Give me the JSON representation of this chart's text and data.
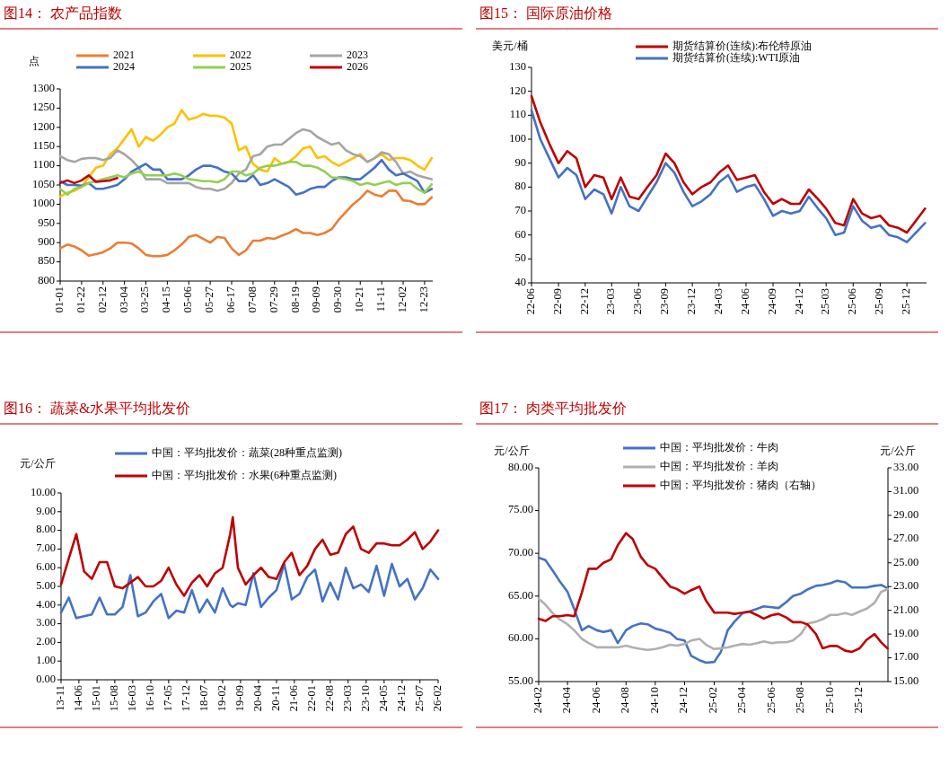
{
  "chart_data": [
    {
      "type": "line",
      "title": "图14：  农产品指数",
      "ylabel": "点",
      "legend": "top",
      "x": [
        "--01-01",
        "--01-08",
        "--01-15",
        "--01-22",
        "--01-29",
        "--02-05",
        "--02-12",
        "--02-19",
        "--02-26",
        "--03-04",
        "--03-11",
        "--03-18",
        "--03-25",
        "--04-01",
        "--04-08",
        "--04-15",
        "--04-22",
        "--04-29",
        "--05-06",
        "--05-13",
        "--05-20",
        "--05-27",
        "--06-03",
        "--06-10",
        "--06-17",
        "--06-24",
        "--07-01",
        "--07-08",
        "--07-15",
        "--07-22",
        "--07-29",
        "--08-05",
        "--08-12",
        "--08-19",
        "--08-26",
        "--09-02",
        "--09-09",
        "--09-16",
        "--09-23",
        "--09-30",
        "--10-07",
        "--10-14",
        "--10-21",
        "--10-28",
        "--11-04",
        "--11-11",
        "--11-18",
        "--11-25",
        "--12-02",
        "--12-09",
        "--12-16",
        "--12-23",
        "--12-30"
      ],
      "xlim": [
        "--01-01",
        "--12-31"
      ],
      "ylim": [
        800,
        1300
      ],
      "yticks": [
        800,
        850,
        900,
        950,
        1000,
        1050,
        1100,
        1150,
        1200,
        1250,
        1300
      ],
      "xticks": [
        {
          "value": "--01-01",
          "label": "01-01"
        },
        {
          "value": "--01-22",
          "label": "01-22"
        },
        {
          "value": "--02-12",
          "label": "02-12"
        },
        {
          "value": "--03-04",
          "label": "03-04"
        },
        {
          "value": "--03-25",
          "label": "03-25"
        },
        {
          "value": "--04-15",
          "label": "04-15"
        },
        {
          "value": "--05-06",
          "label": "05-06"
        },
        {
          "value": "--05-27",
          "label": "05-27"
        },
        {
          "value": "--06-17",
          "label": "06-17"
        },
        {
          "value": "--07-08",
          "label": "07-08"
        },
        {
          "value": "--07-29",
          "label": "07-29"
        },
        {
          "value": "--08-19",
          "label": "08-19"
        },
        {
          "value": "--09-09",
          "label": "09-09"
        },
        {
          "value": "--09-30",
          "label": "09-30"
        },
        {
          "value": "--10-21",
          "label": "10-21"
        },
        {
          "value": "--11-11",
          "label": "11-11"
        },
        {
          "value": "--12-02",
          "label": "12-02"
        },
        {
          "value": "--12-23",
          "label": "12-23"
        }
      ],
      "series": [
        {
          "name": "2021",
          "color": "#ed7d31",
          "values": [
            885,
            895,
            890,
            880,
            866,
            870,
            875,
            885,
            900,
            900,
            898,
            885,
            868,
            865,
            865,
            868,
            880,
            895,
            915,
            920,
            910,
            900,
            915,
            912,
            885,
            868,
            880,
            905,
            905,
            912,
            910,
            918,
            925,
            935,
            925,
            925,
            920,
            925,
            935,
            960,
            980,
            1000,
            1015,
            1035,
            1025,
            1020,
            1035,
            1035,
            1010,
            1008,
            1000,
            1000,
            1018
          ]
        },
        {
          "name": "2022",
          "color": "#ffc000",
          "values": [
            1020,
            1030,
            1035,
            1045,
            1070,
            1095,
            1100,
            1130,
            1145,
            1170,
            1195,
            1150,
            1175,
            1165,
            1180,
            1200,
            1210,
            1245,
            1220,
            1225,
            1235,
            1230,
            1230,
            1225,
            1210,
            1140,
            1150,
            1105,
            1090,
            1085,
            1120,
            1105,
            1110,
            1125,
            1145,
            1150,
            1120,
            1125,
            1110,
            1100,
            1110,
            1120,
            1130,
            1110,
            1120,
            1130,
            1115,
            1120,
            1120,
            1115,
            1100,
            1090,
            1120
          ]
        },
        {
          "name": "2023",
          "color": "#a5a5a5",
          "values": [
            1125,
            1115,
            1110,
            1118,
            1120,
            1120,
            1115,
            1120,
            1140,
            1130,
            1115,
            1095,
            1065,
            1065,
            1065,
            1055,
            1055,
            1055,
            1055,
            1045,
            1040,
            1040,
            1035,
            1040,
            1055,
            1080,
            1090,
            1125,
            1130,
            1150,
            1155,
            1155,
            1170,
            1185,
            1195,
            1190,
            1175,
            1165,
            1155,
            1160,
            1140,
            1130,
            1125,
            1110,
            1120,
            1135,
            1130,
            1110,
            1080,
            1085,
            1075,
            1070,
            1065
          ]
        },
        {
          "name": "2024",
          "color": "#4472c4",
          "values": [
            1060,
            1050,
            1050,
            1048,
            1055,
            1040,
            1040,
            1045,
            1050,
            1065,
            1085,
            1095,
            1105,
            1090,
            1090,
            1065,
            1065,
            1065,
            1075,
            1090,
            1100,
            1100,
            1095,
            1085,
            1080,
            1060,
            1060,
            1075,
            1050,
            1055,
            1065,
            1055,
            1045,
            1025,
            1030,
            1040,
            1045,
            1045,
            1060,
            1070,
            1070,
            1065,
            1065,
            1080,
            1095,
            1115,
            1090,
            1075,
            1080,
            1070,
            1060,
            1030,
            1040
          ]
        },
        {
          "name": "2025",
          "color": "#92d050",
          "values": [
            1040,
            1025,
            1040,
            1045,
            1055,
            1060,
            1065,
            1070,
            1075,
            1070,
            1080,
            1085,
            1075,
            1075,
            1075,
            1075,
            1080,
            1075,
            1065,
            1063,
            1060,
            1060,
            1057,
            1065,
            1085,
            1085,
            1075,
            1080,
            1095,
            1100,
            1100,
            1105,
            1110,
            1110,
            1100,
            1100,
            1095,
            1085,
            1070,
            1068,
            1065,
            1060,
            1050,
            1055,
            1050,
            1055,
            1060,
            1050,
            1055,
            1055,
            1040,
            1030,
            1052
          ]
        },
        {
          "name": "2026",
          "color": "#c00000",
          "x": [
            "--01-01",
            "--01-08",
            "--01-15",
            "--01-22",
            "--01-29",
            "--02-05",
            "--02-12",
            "--02-19",
            "--02-26"
          ],
          "values": [
            1055,
            1062,
            1055,
            1062,
            1075,
            1058,
            1060,
            1062,
            1068
          ]
        }
      ]
    },
    {
      "type": "line",
      "title": "图15：  国际原油价格",
      "ylabel": "美元/桶",
      "legend": "top",
      "x": [
        "2022-06",
        "2022-07",
        "2022-08",
        "2022-09",
        "2022-10",
        "2022-11",
        "2022-12",
        "2023-01",
        "2023-02",
        "2023-03",
        "2023-04",
        "2023-05",
        "2023-06",
        "2023-07",
        "2023-08",
        "2023-09",
        "2023-10",
        "2023-11",
        "2023-12",
        "2024-01",
        "2024-02",
        "2024-03",
        "2024-04",
        "2024-05",
        "2024-06",
        "2024-07",
        "2024-08",
        "2024-09",
        "2024-10",
        "2024-11",
        "2024-12",
        "2025-01",
        "2025-02",
        "2025-03",
        "2025-04",
        "2025-05",
        "2025-06",
        "2025-07",
        "2025-08",
        "2025-09",
        "2025-10",
        "2025-11",
        "2025-12",
        "2026-01",
        "2026-02"
      ],
      "xlim": [
        "2022-06",
        "2026-02-06"
      ],
      "ylim": [
        40,
        130
      ],
      "yticks": [
        40,
        50,
        60,
        70,
        80,
        90,
        100,
        110,
        120,
        130
      ],
      "xticks": [
        {
          "value": "2022-06",
          "label": "22-06"
        },
        {
          "value": "2022-09",
          "label": "22-09"
        },
        {
          "value": "2022-12",
          "label": "22-12"
        },
        {
          "value": "2023-03",
          "label": "23-03"
        },
        {
          "value": "2023-06",
          "label": "23-06"
        },
        {
          "value": "2023-09",
          "label": "23-09"
        },
        {
          "value": "2023-12",
          "label": "23-12"
        },
        {
          "value": "2024-03",
          "label": "24-03"
        },
        {
          "value": "2024-06",
          "label": "24-06"
        },
        {
          "value": "2024-09",
          "label": "24-09"
        },
        {
          "value": "2024-12",
          "label": "24-12"
        },
        {
          "value": "2025-03",
          "label": "25-03"
        },
        {
          "value": "2025-06",
          "label": "25-06"
        },
        {
          "value": "2025-09",
          "label": "25-09"
        },
        {
          "value": "2025-12",
          "label": "25-12"
        }
      ],
      "series": [
        {
          "name": "期货结算价(连续):布伦特原油",
          "color": "#c00000",
          "values": [
            118,
            107,
            98,
            90,
            95,
            92,
            80,
            85,
            84,
            75,
            84,
            76,
            75,
            80,
            85,
            94,
            90,
            82,
            77,
            80,
            82,
            86,
            89,
            83,
            84,
            85,
            78,
            73,
            75,
            73,
            73,
            79,
            75,
            71,
            65,
            64,
            75,
            69,
            67,
            68,
            64,
            63,
            61,
            66,
            71
          ]
        },
        {
          "name": "期货结算价(连续):WTI原油",
          "color": "#4472c4",
          "values": [
            112,
            100,
            92,
            84,
            88,
            85,
            75,
            79,
            77,
            69,
            80,
            72,
            70,
            76,
            82,
            90,
            86,
            78,
            72,
            74,
            77,
            82,
            85,
            78,
            80,
            81,
            75,
            68,
            70,
            69,
            70,
            76,
            71,
            67,
            60,
            61,
            72,
            66,
            63,
            64,
            60,
            59,
            57,
            61,
            65
          ]
        }
      ]
    },
    {
      "type": "line",
      "title": "图16：  蔬菜&水果平均批发价",
      "ylabel": "元/公斤",
      "legend": "top",
      "x": [
        "2013-11",
        "2014-02",
        "2014-05",
        "2014-08",
        "2014-11",
        "2015-02",
        "2015-05",
        "2015-08",
        "2015-11",
        "2016-02",
        "2016-05",
        "2016-08",
        "2016-11",
        "2017-02",
        "2017-05",
        "2017-08",
        "2017-11",
        "2018-02",
        "2018-05",
        "2018-08",
        "2018-11",
        "2019-02",
        "2019-05",
        "2019-06",
        "2019-08",
        "2019-11",
        "2020-02",
        "2020-05",
        "2020-08",
        "2020-11",
        "2021-02",
        "2021-05",
        "2021-08",
        "2021-11",
        "2022-02",
        "2022-05",
        "2022-08",
        "2022-11",
        "2023-02",
        "2023-05",
        "2023-08",
        "2023-11",
        "2024-02",
        "2024-05",
        "2024-08",
        "2024-11",
        "2025-02",
        "2025-05",
        "2025-08",
        "2025-11",
        "2026-02"
      ],
      "xlim": [
        "2013-11",
        "2026-02"
      ],
      "ylim": [
        0,
        10
      ],
      "yticks": [
        {
          "value": 0,
          "label": "0.00"
        },
        {
          "value": 1,
          "label": "1.00"
        },
        {
          "value": 2,
          "label": "2.00"
        },
        {
          "value": 3,
          "label": "3.00"
        },
        {
          "value": 4,
          "label": "4.00"
        },
        {
          "value": 5,
          "label": "5.00"
        },
        {
          "value": 6,
          "label": "6.00"
        },
        {
          "value": 7,
          "label": "7.00"
        },
        {
          "value": 8,
          "label": "8.00"
        },
        {
          "value": 9,
          "label": "9.00"
        },
        {
          "value": 10,
          "label": "10.00"
        }
      ],
      "xticks": [
        {
          "value": "2013-11",
          "label": "13-11"
        },
        {
          "value": "2014-06",
          "label": "14-06"
        },
        {
          "value": "2015-01",
          "label": "15-01"
        },
        {
          "value": "2015-08",
          "label": "15-08"
        },
        {
          "value": "2016-03",
          "label": "16-03"
        },
        {
          "value": "2016-10",
          "label": "16-10"
        },
        {
          "value": "2017-05",
          "label": "17-05"
        },
        {
          "value": "2017-12",
          "label": "17-12"
        },
        {
          "value": "2018-07",
          "label": "18-07"
        },
        {
          "value": "2019-02",
          "label": "19-02"
        },
        {
          "value": "2019-09",
          "label": "19-09"
        },
        {
          "value": "2020-04",
          "label": "20-04"
        },
        {
          "value": "2020-11",
          "label": "20-11"
        },
        {
          "value": "2021-06",
          "label": "21-06"
        },
        {
          "value": "2022-01",
          "label": "22-01"
        },
        {
          "value": "2022-08",
          "label": "22-08"
        },
        {
          "value": "2023-03",
          "label": "23-03"
        },
        {
          "value": "2023-10",
          "label": "23-10"
        },
        {
          "value": "2024-05",
          "label": "24-05"
        },
        {
          "value": "2024-12",
          "label": "24-12"
        },
        {
          "value": "2025-07",
          "label": "25-07"
        },
        {
          "value": "2026-02",
          "label": "26-02"
        }
      ],
      "series": [
        {
          "name": "中国：平均批发价：蔬菜(28种重点监测)",
          "color": "#4472c4",
          "values": [
            3.6,
            4.4,
            3.3,
            3.4,
            3.5,
            4.4,
            3.5,
            3.5,
            3.9,
            5.6,
            3.4,
            3.6,
            4.2,
            4.6,
            3.3,
            3.7,
            3.6,
            4.8,
            3.6,
            4.3,
            3.6,
            4.9,
            4.0,
            3.9,
            4.1,
            4.0,
            5.7,
            3.9,
            4.4,
            4.8,
            6.2,
            4.3,
            4.6,
            5.5,
            5.9,
            4.2,
            5.2,
            4.3,
            6.0,
            4.9,
            5.1,
            4.7,
            6.1,
            4.5,
            6.2,
            5.0,
            5.4,
            4.3,
            4.9,
            5.9,
            5.4
          ]
        },
        {
          "name": "中国：平均批发价：水果(6种重点监测)",
          "color": "#c00000",
          "values": [
            5.1,
            6.5,
            7.8,
            5.8,
            5.4,
            6.3,
            6.3,
            5.0,
            4.9,
            5.2,
            5.5,
            5.0,
            5.0,
            5.3,
            6.0,
            5.1,
            4.5,
            5.2,
            5.6,
            5.0,
            5.7,
            6.0,
            7.8,
            8.7,
            6.0,
            5.1,
            5.6,
            6.0,
            5.5,
            5.4,
            6.3,
            6.8,
            5.6,
            6.1,
            7.0,
            7.5,
            6.7,
            6.8,
            7.8,
            8.2,
            7.0,
            6.8,
            7.3,
            7.3,
            7.2,
            7.2,
            7.5,
            7.9,
            7.0,
            7.4,
            8.0
          ]
        }
      ]
    },
    {
      "type": "line",
      "title": "图17：  肉类平均批发价",
      "ylabel": "元/公斤",
      "y2label": "元/公斤",
      "legend": "top",
      "x": [
        "2024-02-01",
        "2024-02-15",
        "2024-03-01",
        "2024-03-15",
        "2024-04-01",
        "2024-04-15",
        "2024-05-01",
        "2024-05-15",
        "2024-06-01",
        "2024-06-15",
        "2024-07-01",
        "2024-07-15",
        "2024-08-01",
        "2024-08-15",
        "2024-09-01",
        "2024-09-15",
        "2024-10-01",
        "2024-10-15",
        "2024-11-01",
        "2024-11-15",
        "2024-12-01",
        "2024-12-15",
        "2025-01-01",
        "2025-01-15",
        "2025-02-01",
        "2025-02-15",
        "2025-03-01",
        "2025-03-15",
        "2025-04-01",
        "2025-04-15",
        "2025-05-01",
        "2025-05-15",
        "2025-06-01",
        "2025-06-15",
        "2025-07-01",
        "2025-07-15",
        "2025-08-01",
        "2025-08-15",
        "2025-09-01",
        "2025-09-15",
        "2025-10-01",
        "2025-10-15",
        "2025-11-01",
        "2025-11-15",
        "2025-12-01",
        "2025-12-15",
        "2026-01-01",
        "2026-01-15",
        "2026-01-28"
      ],
      "xlim": [
        "2024-02-01",
        "2026-01-29"
      ],
      "ylim": [
        55,
        80
      ],
      "y2lim": [
        15,
        33
      ],
      "yticks": [
        {
          "value": 55,
          "label": "55.00"
        },
        {
          "value": 60,
          "label": "60.00"
        },
        {
          "value": 65,
          "label": "65.00"
        },
        {
          "value": 70,
          "label": "70.00"
        },
        {
          "value": 75,
          "label": "75.00"
        },
        {
          "value": 80,
          "label": "80.00"
        }
      ],
      "y2ticks": [
        {
          "value": 15,
          "label": "15.00"
        },
        {
          "value": 17,
          "label": "17.00"
        },
        {
          "value": 19,
          "label": "19.00"
        },
        {
          "value": 21,
          "label": "21.00"
        },
        {
          "value": 23,
          "label": "23.00"
        },
        {
          "value": 25,
          "label": "25.00"
        },
        {
          "value": 27,
          "label": "27.00"
        },
        {
          "value": 29,
          "label": "29.00"
        },
        {
          "value": 31,
          "label": "31.00"
        },
        {
          "value": 33,
          "label": "33.00"
        }
      ],
      "xticks": [
        {
          "value": "2024-02",
          "label": "24-02"
        },
        {
          "value": "2024-04",
          "label": "24-04"
        },
        {
          "value": "2024-06",
          "label": "24-06"
        },
        {
          "value": "2024-08",
          "label": "24-08"
        },
        {
          "value": "2024-10",
          "label": "24-10"
        },
        {
          "value": "2024-12",
          "label": "24-12"
        },
        {
          "value": "2025-02",
          "label": "25-02"
        },
        {
          "value": "2025-04",
          "label": "25-04"
        },
        {
          "value": "2025-06",
          "label": "25-06"
        },
        {
          "value": "2025-08",
          "label": "25-08"
        },
        {
          "value": "2025-10",
          "label": "25-10"
        },
        {
          "value": "2025-12",
          "label": "25-12"
        }
      ],
      "series": [
        {
          "name": "中国：平均批发价：牛肉",
          "color": "#4472c4",
          "values": [
            69.5,
            69.2,
            68.0,
            66.8,
            65.5,
            63.5,
            61.0,
            61.5,
            61.0,
            60.8,
            61.0,
            59.5,
            61.0,
            61.5,
            61.8,
            61.7,
            61.2,
            61.0,
            60.7,
            60.0,
            59.8,
            58.0,
            57.5,
            57.2,
            57.3,
            58.5,
            61.0,
            62.0,
            63.0,
            63.2,
            63.5,
            63.8,
            63.7,
            63.6,
            64.3,
            65.0,
            65.3,
            65.8,
            66.2,
            66.3,
            66.5,
            66.8,
            66.6,
            66.0,
            66.0,
            66.0,
            66.2,
            66.3,
            65.9
          ]
        },
        {
          "name": "中国：平均批发价：羊肉",
          "color": "#b0b0b0",
          "values": [
            64.7,
            64.0,
            63.0,
            62.3,
            61.7,
            61.0,
            60.0,
            59.5,
            59.0,
            59.0,
            59.0,
            59.0,
            59.2,
            59.0,
            58.8,
            58.7,
            58.8,
            59.0,
            59.3,
            59.2,
            59.4,
            59.8,
            60.0,
            59.3,
            58.8,
            58.9,
            59.0,
            59.2,
            59.4,
            59.3,
            59.5,
            59.7,
            59.5,
            59.6,
            59.6,
            59.8,
            60.6,
            61.8,
            62.0,
            62.3,
            62.8,
            62.8,
            63.0,
            62.8,
            63.2,
            63.5,
            64.2,
            65.5,
            65.8
          ]
        },
        {
          "name": "中国：平均批发价：猪肉（右轴）",
          "color": "#c00000",
          "axis": "y2",
          "values": [
            20.3,
            20.1,
            20.5,
            20.5,
            20.6,
            20.5,
            22.5,
            24.5,
            24.5,
            25.0,
            25.3,
            26.5,
            27.5,
            27.0,
            25.5,
            24.8,
            24.5,
            23.8,
            23.0,
            22.8,
            22.4,
            22.7,
            23.0,
            21.8,
            20.8,
            20.8,
            20.8,
            20.7,
            20.8,
            20.9,
            20.6,
            20.3,
            20.6,
            20.7,
            20.4,
            20.0,
            20.0,
            19.8,
            19.0,
            17.8,
            18.0,
            18.0,
            17.6,
            17.5,
            17.8,
            18.5,
            19.0,
            18.3,
            17.8
          ]
        }
      ]
    }
  ]
}
